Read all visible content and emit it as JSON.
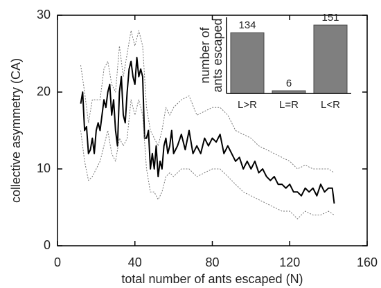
{
  "chart_data": [
    {
      "type": "line",
      "xlabel": "total number of ants escaped (N)",
      "ylabel": "collective asymmetry (CA)",
      "xlim": [
        0,
        160
      ],
      "xticks": [
        0,
        40,
        80,
        120,
        160
      ],
      "ylim": [
        0,
        30
      ],
      "yticks": [
        0,
        10,
        20,
        30
      ],
      "series": [
        {
          "color": "#000000",
          "style": "solid",
          "x": [
            12,
            13,
            14,
            15,
            16,
            17,
            18,
            19,
            20,
            21,
            22,
            23,
            24,
            25,
            26,
            27,
            28,
            29,
            30,
            31,
            32,
            33,
            34,
            35,
            36,
            37,
            38,
            39,
            40,
            41,
            42,
            43,
            44,
            45,
            46,
            47,
            48,
            49,
            50,
            51,
            52,
            53,
            54,
            55,
            56,
            57,
            58,
            59,
            60,
            62,
            64,
            66,
            68,
            70,
            72,
            74,
            76,
            78,
            80,
            82,
            84,
            86,
            88,
            90,
            92,
            94,
            96,
            98,
            100,
            102,
            104,
            106,
            108,
            110,
            112,
            114,
            116,
            118,
            120,
            122,
            124,
            126,
            128,
            130,
            132,
            134,
            136,
            138,
            140,
            142,
            143
          ],
          "values": [
            18.5,
            20,
            15,
            15.5,
            12,
            12.5,
            14,
            12,
            15,
            16,
            15,
            17,
            19,
            18,
            20,
            21,
            17,
            19,
            15,
            13,
            20,
            22,
            17,
            16,
            20,
            23,
            24,
            22,
            21,
            24.5,
            22,
            23,
            22,
            14,
            14,
            15,
            10,
            12,
            10,
            13,
            9,
            11,
            10,
            13,
            14,
            12,
            13,
            15,
            12,
            13,
            14.5,
            12.5,
            15,
            12,
            13,
            12,
            14,
            13,
            14,
            13.5,
            14.5,
            12,
            13,
            12,
            11,
            11.5,
            10,
            11,
            10,
            11,
            9.5,
            10,
            9,
            8.5,
            9,
            8,
            8,
            7.5,
            8,
            7,
            7,
            6.5,
            7.5,
            7,
            7.5,
            6.5,
            8,
            7,
            7.5,
            7.5,
            5.5
          ]
        },
        {
          "color": "#777777",
          "style": "dotted",
          "x": [
            12,
            14,
            16,
            18,
            20,
            22,
            24,
            26,
            28,
            30,
            32,
            34,
            36,
            38,
            40,
            42,
            44,
            46,
            48,
            50,
            52,
            54,
            56,
            58,
            60,
            64,
            68,
            72,
            76,
            80,
            84,
            88,
            92,
            96,
            100,
            104,
            108,
            112,
            116,
            120,
            124,
            128,
            132,
            136,
            140,
            143
          ],
          "values": [
            23.5,
            20,
            16,
            19,
            19,
            19,
            23,
            24,
            21,
            20,
            26,
            22,
            25,
            28,
            26,
            28,
            26,
            18,
            15,
            14,
            13,
            15,
            18,
            17,
            18,
            19,
            19.5,
            17,
            17.5,
            18,
            18,
            17,
            15,
            14.5,
            14,
            13,
            12.5,
            12,
            11.5,
            11,
            10,
            10.5,
            10,
            10,
            10,
            9.5
          ]
        },
        {
          "color": "#777777",
          "style": "dotted",
          "x": [
            12,
            14,
            16,
            18,
            20,
            22,
            24,
            26,
            28,
            30,
            32,
            34,
            36,
            38,
            40,
            42,
            44,
            46,
            48,
            50,
            52,
            54,
            56,
            58,
            60,
            64,
            68,
            72,
            76,
            80,
            84,
            88,
            92,
            96,
            100,
            104,
            108,
            112,
            116,
            120,
            124,
            128,
            132,
            136,
            140,
            143
          ],
          "values": [
            15,
            11,
            8.5,
            9,
            10,
            11,
            13,
            15,
            12,
            11,
            14,
            13,
            14,
            19,
            17,
            19,
            17,
            10,
            7,
            7,
            6,
            7,
            9,
            9.5,
            9,
            10,
            10,
            9,
            9.5,
            10,
            10,
            9,
            8,
            7,
            6.5,
            6,
            5.5,
            5,
            4.5,
            4.5,
            3.5,
            4.5,
            4,
            4,
            4.5,
            4
          ]
        }
      ]
    },
    {
      "type": "bar",
      "ylabel_lines": [
        "number of",
        "ants escaped"
      ],
      "categories": [
        "L>R",
        "L=R",
        "L<R"
      ],
      "values": [
        134,
        6,
        151
      ],
      "color": "#7f7f7f",
      "ylim": [
        0,
        168
      ]
    }
  ]
}
